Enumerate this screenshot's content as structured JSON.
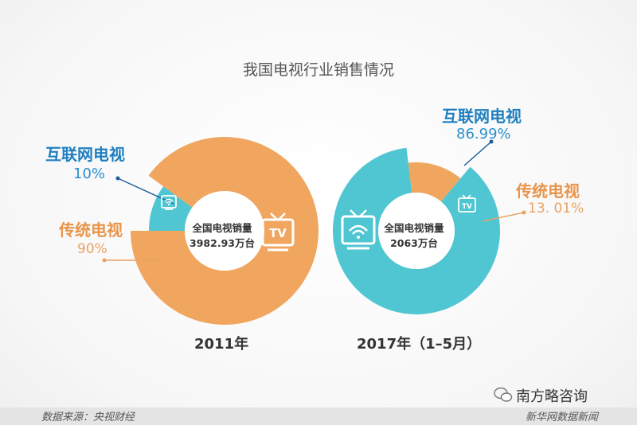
{
  "title": "我国电视行业销售情况",
  "chart_data": [
    {
      "type": "pie",
      "year_label": "2011年",
      "center_text": [
        "全国电视销量",
        "3982.93万台"
      ],
      "slices": [
        {
          "label": "互联网电视",
          "value_label": "10%",
          "value": 10,
          "color": "#4fc6d2"
        },
        {
          "label": "传统电视",
          "value_label": "90%",
          "value": 90,
          "color": "#f0a65f"
        }
      ]
    },
    {
      "type": "pie",
      "year_label": "2017年（1–5月）",
      "center_text": [
        "全国电视销量",
        "2063万台"
      ],
      "slices": [
        {
          "label": "互联网电视",
          "value_label": "86.99%",
          "value": 86.99,
          "color": "#4fc6d2"
        },
        {
          "label": "传统电视",
          "value_label": "13. 01%",
          "value": 13.01,
          "color": "#f0a65f"
        }
      ]
    }
  ],
  "icons": {
    "tv": "tv-icon",
    "wifi_tv": "wifi-tv-icon",
    "wechat": "wechat-icon"
  },
  "footer": {
    "source": "数据来源：央视财经",
    "credit": "新华网数据新闻"
  },
  "watermark": "南方略咨询"
}
